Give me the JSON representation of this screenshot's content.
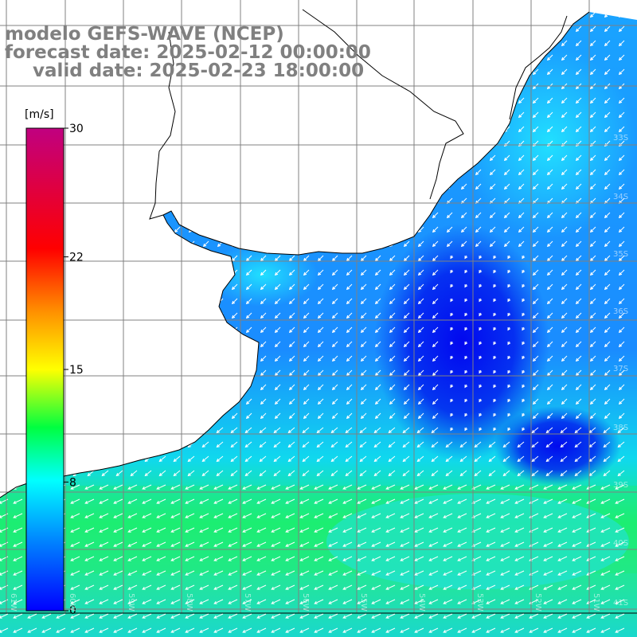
{
  "titles": {
    "line1": "modelo GEFS-WAVE (NCEP)",
    "line2": "forecast date: 2025-02-12 00:00:00",
    "line3": "valid date: 2025-02-23 18:00:00"
  },
  "colorbar": {
    "unit": "[m/s]",
    "min": 0,
    "max": 30,
    "tick_labels": [
      "30",
      "22",
      "15",
      "8",
      "0"
    ],
    "tick_values": [
      30,
      22,
      15,
      8,
      0
    ],
    "colors": [
      "#0000ff",
      "#00a0ff",
      "#00ffff",
      "#00ff00",
      "#ffff00",
      "#ff8000",
      "#ff0000",
      "#c00080"
    ]
  },
  "lat_labels": [
    "33S",
    "34S",
    "35S",
    "36S",
    "37S",
    "38S",
    "39S",
    "40S",
    "41S"
  ],
  "lon_labels": [
    "61W",
    "60W",
    "59W",
    "58W",
    "57W",
    "56W",
    "55W",
    "54W",
    "53W",
    "52W",
    "51W"
  ],
  "colors": {
    "land": "#ffffff",
    "coast": "#000000",
    "grid": "#808080",
    "arrow": "#ffffff",
    "title": "#808080"
  },
  "icons": {
    "wind-arrow": "arrow glyph pointing in wind direction"
  }
}
